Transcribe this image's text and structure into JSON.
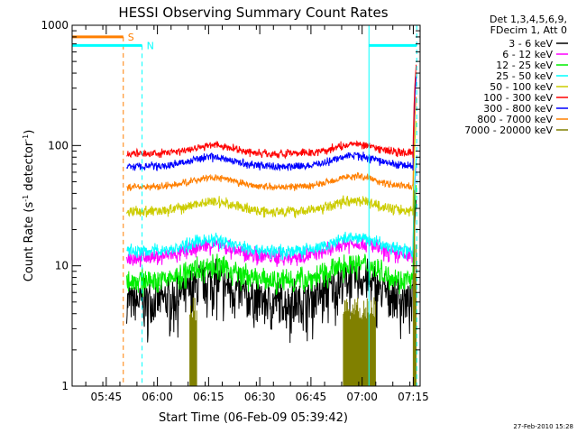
{
  "chart_data": {
    "type": "line",
    "title": "HESSI Observing Summary Count Rates",
    "xlabel": "Start Time (06-Feb-09 05:39:42)",
    "ylabel_main": "Count Rate (s",
    "ylabel_sup1": "-1",
    "ylabel_mid": " detector",
    "ylabel_sup2": "-1",
    "ylabel_end": ")",
    "yscale": "log",
    "ylim": [
      1,
      1000
    ],
    "xlim_minutes": [
      -4,
      98
    ],
    "x_ticks": [
      {
        "m": 6,
        "label": "05:45"
      },
      {
        "m": 21,
        "label": "06:00"
      },
      {
        "m": 36,
        "label": "06:15"
      },
      {
        "m": 51,
        "label": "06:30"
      },
      {
        "m": 66,
        "label": "06:45"
      },
      {
        "m": 81,
        "label": "07:00"
      },
      {
        "m": 96,
        "label": "07:15"
      }
    ],
    "y_ticks": [
      {
        "v": 1,
        "label": "1"
      },
      {
        "v": 10,
        "label": "10"
      },
      {
        "v": 100,
        "label": "100"
      },
      {
        "v": 1000,
        "label": "1000"
      }
    ],
    "legend_header": [
      "Det 1,3,4,5,6,9,",
      "FDecim 1, Att 0"
    ],
    "series": [
      {
        "name": "3 - 6 keV",
        "color": "#000000",
        "base": 7.5,
        "noise": 0.35,
        "dip": 2.0,
        "wave": 0.3
      },
      {
        "name": "6 - 12 keV",
        "color": "#ff00ff",
        "base": 15.0,
        "noise": 0.12,
        "dip": 1.5,
        "wave": 0.2
      },
      {
        "name": "12 - 25 keV",
        "color": "#00ee00",
        "base": 10.0,
        "noise": 0.18,
        "dip": 1.6,
        "wave": 0.25
      },
      {
        "name": "25 - 50 keV",
        "color": "#00ffff",
        "base": 16.5,
        "noise": 0.1,
        "dip": 1.45,
        "wave": 0.2
      },
      {
        "name": "50 - 100 keV",
        "color": "#cccc00",
        "base": 34.0,
        "noise": 0.08,
        "dip": 1.35,
        "wave": 0.18
      },
      {
        "name": "100 - 300 keV",
        "color": "#ff0000",
        "base": 100.0,
        "noise": 0.06,
        "dip": 1.3,
        "wave": 0.15
      },
      {
        "name": "300 - 800 keV",
        "color": "#0000ff",
        "base": 80.0,
        "noise": 0.06,
        "dip": 1.35,
        "wave": 0.16
      },
      {
        "name": "800 - 7000 keV",
        "color": "#ff7f00",
        "base": 54.0,
        "noise": 0.05,
        "dip": 1.35,
        "wave": 0.16
      },
      {
        "name": "7000 - 20000 keV",
        "color": "#808000",
        "base": 1.0,
        "noise": 0.0,
        "dip": 1.0,
        "wave": 0.0
      }
    ],
    "data_start_minute": 12,
    "data_end_minute": 96,
    "flag_lines": [
      {
        "label": "S",
        "color": "#ff7f00",
        "level": 800,
        "x_start": -4,
        "x_end": 11,
        "vline": 11
      },
      {
        "label": "N",
        "color": "#00ffff",
        "level": 680,
        "x_start": -4,
        "x_end": 16.5,
        "vline": 16.5
      }
    ],
    "cyan_segments": [
      {
        "x_start": 83,
        "x_end": 97,
        "level": 680
      }
    ],
    "cyan_vlines": [
      -4,
      83,
      97
    ],
    "footer_date": "27-Feb-2010 15:28"
  }
}
